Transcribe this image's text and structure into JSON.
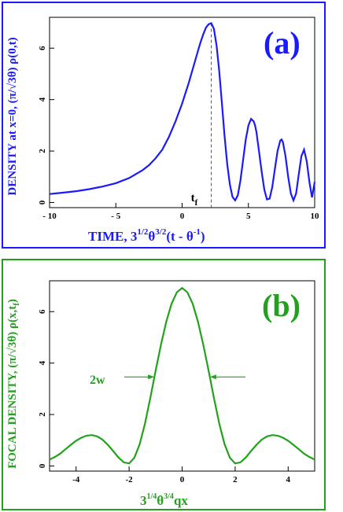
{
  "chart_data": [
    {
      "type": "line",
      "panel_label": "(a)",
      "ylabel": "DENSITY at x=0, (π/√3θ) ρ(0,t)",
      "xlabel_parts": [
        "TIME,  3",
        "1/2",
        "θ",
        "3/2",
        "(t - θ",
        "-1",
        ")"
      ],
      "xlim": [
        -10,
        10
      ],
      "ylim": [
        -0.2,
        7.2
      ],
      "xticks": [
        -10,
        -5,
        0,
        5,
        10
      ],
      "xtick_labels": [
        "- 10",
        "- 5",
        "0",
        "5",
        "10"
      ],
      "yticks": [
        0,
        2,
        4,
        6
      ],
      "yticks_rotated": true,
      "grid": false,
      "color": "#1a1aff",
      "annotation": {
        "text": "t",
        "subscript": "f",
        "x": 2.2
      },
      "series": [
        {
          "x": [
            -10,
            -9,
            -8,
            -7,
            -6,
            -5,
            -4,
            -3,
            -2.5,
            -2,
            -1.5,
            -1,
            -0.5,
            0,
            0.5,
            1,
            1.2,
            1.4,
            1.6,
            1.8,
            2.0,
            2.2,
            2.4,
            2.6,
            2.8,
            3.0,
            3.2,
            3.4,
            3.6,
            3.8,
            4.0,
            4.2,
            4.4,
            4.6,
            4.8,
            5.0,
            5.2,
            5.4,
            5.5,
            5.6,
            5.8,
            6.0,
            6.2,
            6.4,
            6.6,
            6.8,
            7.0,
            7.2,
            7.4,
            7.5,
            7.6,
            7.8,
            8.0,
            8.2,
            8.4,
            8.6,
            8.8,
            9.0,
            9.2,
            9.4,
            9.6,
            9.8,
            10.0
          ],
          "y": [
            0.33,
            0.38,
            0.44,
            0.52,
            0.62,
            0.75,
            0.95,
            1.25,
            1.45,
            1.72,
            2.05,
            2.55,
            3.15,
            3.85,
            4.65,
            5.55,
            5.9,
            6.25,
            6.55,
            6.8,
            6.93,
            6.97,
            6.75,
            6.1,
            5.1,
            3.85,
            2.6,
            1.5,
            0.7,
            0.22,
            0.08,
            0.28,
            0.85,
            1.65,
            2.45,
            3.0,
            3.25,
            3.15,
            3.0,
            2.75,
            2.0,
            1.2,
            0.5,
            0.12,
            0.15,
            0.6,
            1.3,
            2.0,
            2.4,
            2.45,
            2.35,
            1.8,
            1.0,
            0.35,
            0.08,
            0.35,
            1.1,
            1.8,
            2.05,
            1.6,
            0.8,
            0.2,
            0.8
          ]
        }
      ]
    },
    {
      "type": "line",
      "panel_label": "(b)",
      "ylabel": "FOCAL DENSITY, (π/√3θ) ρ(x,t",
      "ylabel_sub": "f",
      "ylabel_end": ")",
      "xlabel_parts": [
        "3",
        "1/4",
        "θ",
        "3/4",
        "qx"
      ],
      "xlim": [
        -5,
        5
      ],
      "ylim": [
        -0.2,
        7.2
      ],
      "xticks": [
        -4,
        -2,
        0,
        2,
        4
      ],
      "xtick_labels": [
        "-4",
        "-2",
        "0",
        "2",
        "4"
      ],
      "yticks": [
        0,
        2,
        4,
        6
      ],
      "yticks_rotated": true,
      "grid": false,
      "color": "#22a11d",
      "annotation": {
        "text": "2w"
      },
      "series": [
        {
          "x": [
            -5,
            -4.8,
            -4.6,
            -4.4,
            -4.2,
            -4.0,
            -3.8,
            -3.6,
            -3.4,
            -3.2,
            -3.0,
            -2.8,
            -2.6,
            -2.4,
            -2.2,
            -2.0,
            -1.8,
            -1.6,
            -1.4,
            -1.2,
            -1.0,
            -0.8,
            -0.6,
            -0.4,
            -0.2,
            0,
            0.2,
            0.4,
            0.6,
            0.8,
            1.0,
            1.2,
            1.4,
            1.6,
            1.8,
            2.0,
            2.2,
            2.4,
            2.6,
            2.8,
            3.0,
            3.2,
            3.4,
            3.6,
            3.8,
            4.0,
            4.2,
            4.4,
            4.6,
            4.8,
            5.0
          ],
          "y": [
            0.25,
            0.35,
            0.48,
            0.65,
            0.82,
            0.98,
            1.1,
            1.18,
            1.2,
            1.15,
            1.02,
            0.82,
            0.58,
            0.33,
            0.14,
            0.1,
            0.32,
            0.85,
            1.65,
            2.65,
            3.7,
            4.7,
            5.6,
            6.3,
            6.75,
            6.92,
            6.75,
            6.3,
            5.6,
            4.7,
            3.7,
            2.65,
            1.65,
            0.85,
            0.32,
            0.1,
            0.14,
            0.33,
            0.58,
            0.82,
            1.02,
            1.15,
            1.2,
            1.18,
            1.1,
            0.98,
            0.82,
            0.65,
            0.48,
            0.35,
            0.25
          ]
        }
      ]
    }
  ]
}
